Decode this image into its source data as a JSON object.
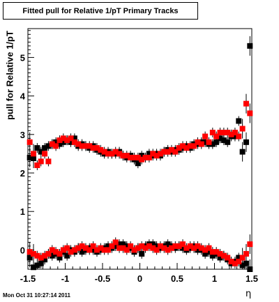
{
  "chart_data": {
    "type": "scatter",
    "title": "Fitted pull for Relative 1/pT  Primary Tracks",
    "xlabel": "η",
    "ylabel": "pull for Relative 1/pT",
    "footer": "Mon Oct 31 10:27:14 2011",
    "xlim": [
      -1.5,
      1.5
    ],
    "ylim": [
      -0.5,
      5.75
    ],
    "xticks": [
      "-1.5",
      "-1",
      "-0.5",
      "0",
      "0.5",
      "1",
      "1.5"
    ],
    "yticks": [
      "0",
      "1",
      "2",
      "3",
      "4",
      "5"
    ],
    "grid": false,
    "legend": "none",
    "x": [
      -1.475,
      -1.425,
      -1.375,
      -1.325,
      -1.275,
      -1.225,
      -1.175,
      -1.125,
      -1.075,
      -1.025,
      -0.975,
      -0.925,
      -0.875,
      -0.825,
      -0.775,
      -0.725,
      -0.675,
      -0.625,
      -0.575,
      -0.525,
      -0.475,
      -0.425,
      -0.375,
      -0.325,
      -0.275,
      -0.225,
      -0.175,
      -0.125,
      -0.075,
      -0.025,
      0.025,
      0.075,
      0.125,
      0.175,
      0.225,
      0.275,
      0.325,
      0.375,
      0.425,
      0.475,
      0.525,
      0.575,
      0.625,
      0.675,
      0.725,
      0.775,
      0.825,
      0.875,
      0.925,
      0.975,
      1.025,
      1.075,
      1.125,
      1.175,
      1.225,
      1.275,
      1.325,
      1.375,
      1.425,
      1.475
    ],
    "series": [
      {
        "color": "#000000",
        "values": [
          2.4,
          2.38,
          2.65,
          2.55,
          2.65,
          2.7,
          2.75,
          2.8,
          2.75,
          2.8,
          2.85,
          2.8,
          2.9,
          2.7,
          2.75,
          2.7,
          2.65,
          2.7,
          2.6,
          2.55,
          2.5,
          2.55,
          2.5,
          2.5,
          2.55,
          2.45,
          2.4,
          2.45,
          2.35,
          2.25,
          2.45,
          2.4,
          2.5,
          2.45,
          2.5,
          2.45,
          2.55,
          2.6,
          2.55,
          2.6,
          2.6,
          2.65,
          2.7,
          2.65,
          2.75,
          2.75,
          2.8,
          2.8,
          2.75,
          2.75,
          2.8,
          2.9,
          2.85,
          2.8,
          2.95,
          2.95,
          3.35,
          2.55,
          2.8,
          5.3
        ]
      },
      {
        "color": "#ff0000",
        "values": [
          2.8,
          2.5,
          2.2,
          2.3,
          2.5,
          2.3,
          2.75,
          2.7,
          2.85,
          2.9,
          2.85,
          2.9,
          2.8,
          2.75,
          2.7,
          2.7,
          2.7,
          2.65,
          2.65,
          2.6,
          2.55,
          2.5,
          2.5,
          2.55,
          2.5,
          2.45,
          2.45,
          2.4,
          2.4,
          2.4,
          2.35,
          2.4,
          2.4,
          2.5,
          2.45,
          2.5,
          2.55,
          2.55,
          2.6,
          2.55,
          2.65,
          2.7,
          2.65,
          2.7,
          2.7,
          2.8,
          2.75,
          2.95,
          2.8,
          3.05,
          2.95,
          3.05,
          3.05,
          3.05,
          3.0,
          3.05,
          2.95,
          3.15,
          3.8,
          3.55
        ]
      },
      {
        "color": "#000000",
        "values": [
          -0.2,
          -0.45,
          -0.4,
          -0.35,
          -0.25,
          -0.1,
          -0.15,
          -0.1,
          -0.2,
          -0.05,
          -0.15,
          0.0,
          -0.05,
          0.05,
          -0.05,
          0.0,
          0.05,
          0.0,
          -0.05,
          0.0,
          0.05,
          0.1,
          0.05,
          0.1,
          0.15,
          0.15,
          0.1,
          0.05,
          -0.05,
          0.05,
          -0.1,
          0.1,
          0.15,
          0.15,
          0.1,
          0.05,
          0.1,
          0.15,
          0.1,
          0.05,
          0.1,
          0.05,
          0.0,
          0.05,
          0.1,
          0.0,
          0.0,
          -0.1,
          -0.05,
          -0.15,
          -0.1,
          -0.2,
          -0.15,
          -0.25,
          -0.35,
          -0.3,
          -0.2,
          -0.4,
          -0.35,
          -0.5
        ]
      },
      {
        "color": "#ff0000",
        "values": [
          -0.05,
          -0.1,
          -0.15,
          -0.2,
          -0.15,
          -0.1,
          0.0,
          -0.05,
          -0.1,
          0.0,
          0.05,
          -0.05,
          0.0,
          0.05,
          0.1,
          0.05,
          0.0,
          0.1,
          0.0,
          0.05,
          0.0,
          0.0,
          0.1,
          0.2,
          0.05,
          0.05,
          0.0,
          0.1,
          0.0,
          0.05,
          0.1,
          0.05,
          0.1,
          0.05,
          0.0,
          0.1,
          0.05,
          0.0,
          0.05,
          0.1,
          0.1,
          0.15,
          0.05,
          0.1,
          0.05,
          0.1,
          0.05,
          0.0,
          0.05,
          -0.05,
          -0.05,
          -0.1,
          -0.15,
          -0.2,
          -0.3,
          -0.35,
          -0.3,
          -0.2,
          -0.1,
          0.15
        ]
      }
    ]
  }
}
